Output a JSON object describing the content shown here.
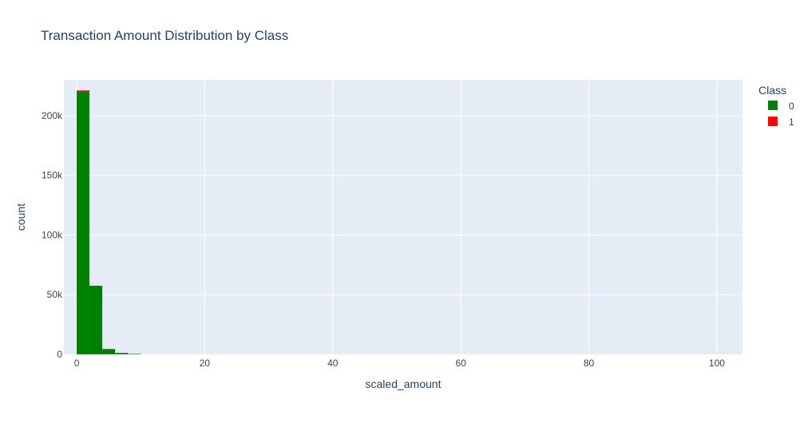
{
  "chart_data": {
    "type": "bar",
    "title": "Transaction Amount Distribution by Class",
    "xlabel": "scaled_amount",
    "ylabel": "count",
    "barmode": "stack",
    "bin_width": 2,
    "xlim": [
      -2,
      104
    ],
    "ylim": [
      0,
      230000
    ],
    "x_ticks": [
      0,
      20,
      40,
      60,
      80,
      100
    ],
    "x_tick_labels": [
      "0",
      "20",
      "40",
      "60",
      "80",
      "100"
    ],
    "y_ticks": [
      0,
      50000,
      100000,
      150000,
      200000
    ],
    "y_tick_labels": [
      "0",
      "50k",
      "100k",
      "150k",
      "200k"
    ],
    "grid": true,
    "legend": {
      "title": "Class",
      "position": "top-right"
    },
    "series": [
      {
        "name": "0",
        "color": "#008000",
        "bins": [
          {
            "x0": -2,
            "x1": 0,
            "count": 0
          },
          {
            "x0": 0,
            "x1": 2,
            "count": 220000
          },
          {
            "x0": 2,
            "x1": 4,
            "count": 57500
          },
          {
            "x0": 4,
            "x1": 6,
            "count": 4500
          },
          {
            "x0": 6,
            "x1": 8,
            "count": 1200
          },
          {
            "x0": 8,
            "x1": 10,
            "count": 400
          }
        ]
      },
      {
        "name": "1",
        "color": "#ff0000",
        "bins": [
          {
            "x0": 0,
            "x1": 2,
            "count": 1100
          }
        ]
      }
    ]
  },
  "colors": {
    "plot_bg": "#e5ecf6",
    "grid": "#ffffff",
    "text": "#2a3f5f",
    "tick_text": "#444444"
  }
}
